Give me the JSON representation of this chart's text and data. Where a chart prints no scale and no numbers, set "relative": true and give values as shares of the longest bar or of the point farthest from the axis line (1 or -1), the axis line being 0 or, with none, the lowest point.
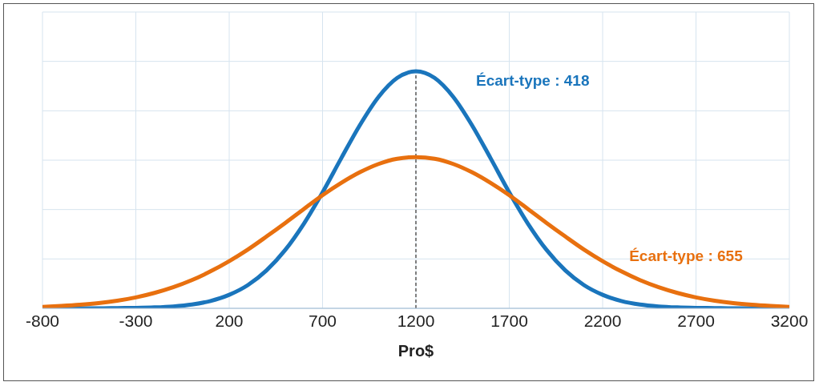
{
  "chart_data": {
    "type": "line",
    "relative": true,
    "xlabel": "Pro$",
    "x": [
      -800,
      -700,
      -600,
      -500,
      -400,
      -300,
      -200,
      -100,
      0,
      100,
      200,
      300,
      400,
      500,
      600,
      700,
      800,
      900,
      1000,
      1100,
      1200,
      1300,
      1400,
      1500,
      1600,
      1700,
      1800,
      1900,
      2000,
      2100,
      2200,
      2300,
      2400,
      2500,
      2600,
      2700,
      2800,
      2900,
      3000,
      3100,
      3200
    ],
    "xlim": [
      -800,
      3200
    ],
    "xticks": [
      -800,
      -300,
      200,
      700,
      1200,
      1700,
      2200,
      2700,
      3200
    ],
    "grid": true,
    "marker": "none",
    "line_style": "solid",
    "series": [
      {
        "name": "Écart-type : 418",
        "color": "#1a75bc",
        "values": [
          0,
          0,
          0,
          0,
          0.001,
          0.002,
          0.004,
          0.008,
          0.016,
          0.031,
          0.057,
          0.098,
          0.16,
          0.246,
          0.357,
          0.489,
          0.633,
          0.773,
          0.892,
          0.972,
          1,
          0.972,
          0.892,
          0.773,
          0.633,
          0.489,
          0.357,
          0.246,
          0.16,
          0.098,
          0.057,
          0.031,
          0.016,
          0.008,
          0.004,
          0.002,
          0.001,
          0,
          0,
          0,
          0
        ]
      },
      {
        "name": "Écart-type : 655",
        "color": "#e8700f",
        "values": [
          0.006,
          0.01,
          0.015,
          0.022,
          0.032,
          0.046,
          0.065,
          0.089,
          0.119,
          0.156,
          0.199,
          0.248,
          0.303,
          0.36,
          0.419,
          0.477,
          0.529,
          0.574,
          0.609,
          0.631,
          0.638,
          0.631,
          0.609,
          0.574,
          0.529,
          0.477,
          0.419,
          0.36,
          0.303,
          0.248,
          0.199,
          0.156,
          0.119,
          0.089,
          0.065,
          0.046,
          0.032,
          0.022,
          0.015,
          0.01,
          0.006
        ]
      }
    ],
    "ref_lines": [
      {
        "axis": "x",
        "value": 1200,
        "color": "#7f7f7f",
        "line_style": "dashed"
      }
    ]
  }
}
